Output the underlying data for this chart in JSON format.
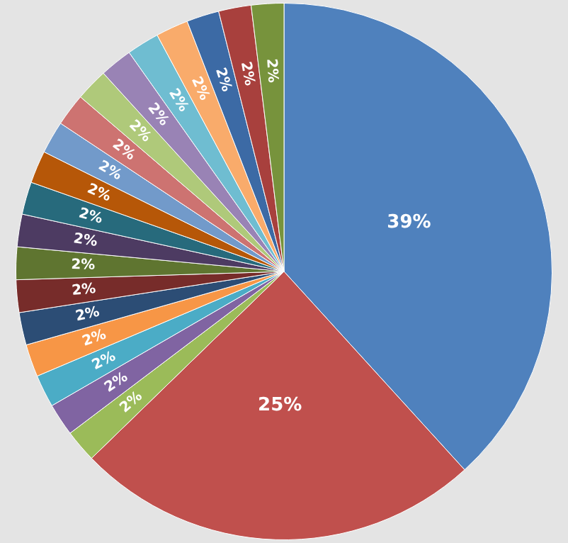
{
  "chart_data": {
    "type": "pie",
    "categories": [
      null,
      null,
      null,
      null,
      null,
      null,
      null,
      null,
      null,
      null,
      null,
      null,
      null,
      null,
      null,
      null,
      null,
      null,
      null,
      null,
      null
    ],
    "values": [
      39,
      25,
      2,
      2,
      2,
      2,
      2,
      2,
      2,
      2,
      2,
      2,
      2,
      2,
      2,
      2,
      2,
      2,
      2,
      2,
      2
    ],
    "colors": [
      "#4f81bd",
      "#c0504d",
      "#9bbb59",
      "#8064a2",
      "#4bacc6",
      "#f79646",
      "#2c4d75",
      "#772c2a",
      "#5f7530",
      "#4d3b62",
      "#276a7c",
      "#b65708",
      "#729aca",
      "#cd7371",
      "#afc97a",
      "#9983b5",
      "#6fbdd1",
      "#f9ab6b",
      "#3c6aa5",
      "#a8403d",
      "#77933c"
    ],
    "value_labels": [
      "39%",
      "25%",
      "2%",
      "2%",
      "2%",
      "2%",
      "2%",
      "2%",
      "2%",
      "2%",
      "2%",
      "2%",
      "2%",
      "2%",
      "2%",
      "2%",
      "2%",
      "2%",
      "2%",
      "2%",
      "2%"
    ],
    "legend": false
  }
}
